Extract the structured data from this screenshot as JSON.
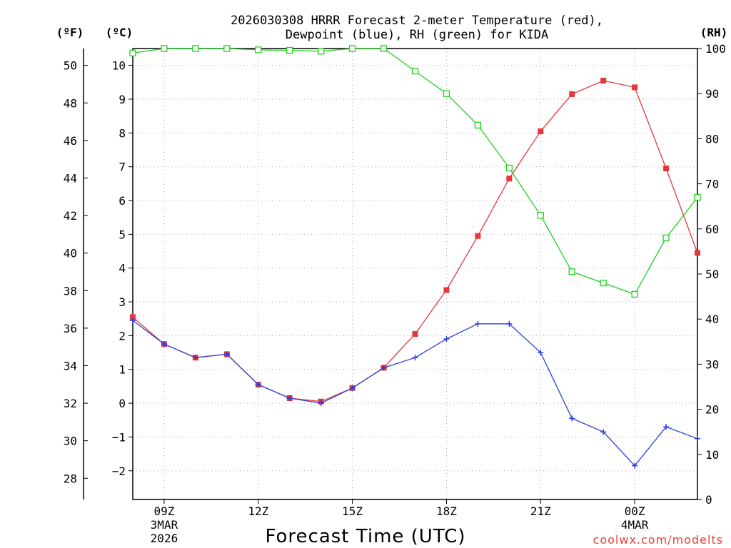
{
  "chart_data": {
    "type": "line",
    "title_line1": "2026030308 HRRR Forecast 2-meter Temperature (red),",
    "title_line2": "Dewpoint (blue), RH (green) for KIDA",
    "xlabel": "Forecast Time (UTC)",
    "credit": "coolwx.com/modelts",
    "units": {
      "left_f": "(ºF)",
      "left_c": "(ºC)",
      "right_rh": "(RH)"
    },
    "x_hours": [
      8,
      9,
      10,
      11,
      12,
      13,
      14,
      15,
      16,
      17,
      18,
      19,
      20,
      21,
      22,
      23,
      24,
      25,
      26
    ],
    "x_range": [
      8,
      26
    ],
    "x_ticks": [
      {
        "hour": 9,
        "label": "09Z",
        "sub1": "3MAR",
        "sub2": "2026"
      },
      {
        "hour": 12,
        "label": "12Z",
        "sub1": "",
        "sub2": ""
      },
      {
        "hour": 15,
        "label": "15Z",
        "sub1": "",
        "sub2": ""
      },
      {
        "hour": 18,
        "label": "18Z",
        "sub1": "",
        "sub2": ""
      },
      {
        "hour": 21,
        "label": "21Z",
        "sub1": "",
        "sub2": ""
      },
      {
        "hour": 24,
        "label": "00Z",
        "sub1": "4MAR",
        "sub2": ""
      }
    ],
    "c_range": [
      -2.85,
      10.5
    ],
    "c_ticks": [
      "10",
      "9",
      "8",
      "7",
      "6",
      "5",
      "4",
      "3",
      "2",
      "1",
      "0",
      "−1",
      "−2"
    ],
    "c_tick_values": [
      10,
      9,
      8,
      7,
      6,
      5,
      4,
      3,
      2,
      1,
      0,
      -1,
      -2
    ],
    "f_ticks": [
      "50",
      "48",
      "46",
      "44",
      "42",
      "40",
      "38",
      "36",
      "34",
      "32",
      "30",
      "28"
    ],
    "f_tick_values": [
      50,
      48,
      46,
      44,
      42,
      40,
      38,
      36,
      34,
      32,
      30,
      28
    ],
    "rh_range": [
      0,
      100
    ],
    "rh_ticks": [
      "100",
      "90",
      "80",
      "70",
      "60",
      "50",
      "40",
      "30",
      "20",
      "10",
      "0"
    ],
    "rh_tick_values": [
      100,
      90,
      80,
      70,
      60,
      50,
      40,
      30,
      20,
      10,
      0
    ],
    "series": [
      {
        "name": "Temperature",
        "unit": "C",
        "color": "#e8363a",
        "marker": "filled-square",
        "values": [
          2.55,
          1.75,
          1.35,
          1.45,
          0.55,
          0.15,
          0.05,
          0.45,
          1.05,
          2.05,
          3.35,
          4.95,
          6.65,
          8.05,
          9.15,
          9.55,
          9.35,
          6.95,
          4.45
        ]
      },
      {
        "name": "Dewpoint",
        "unit": "C",
        "color": "#2a3ede",
        "marker": "plus",
        "values": [
          2.45,
          1.75,
          1.35,
          1.45,
          0.55,
          0.15,
          0.0,
          0.45,
          1.05,
          1.35,
          1.9,
          2.35,
          2.35,
          1.5,
          -0.45,
          -0.85,
          -1.85,
          -0.7,
          -1.05
        ]
      },
      {
        "name": "RH",
        "unit": "%",
        "color": "#1ed21e",
        "marker": "open-square",
        "values": [
          99,
          100,
          100,
          100,
          99.7,
          99.6,
          99.4,
          100,
          100,
          95,
          90,
          83,
          73.5,
          63,
          50.5,
          48,
          45.5,
          58,
          67
        ]
      }
    ]
  }
}
